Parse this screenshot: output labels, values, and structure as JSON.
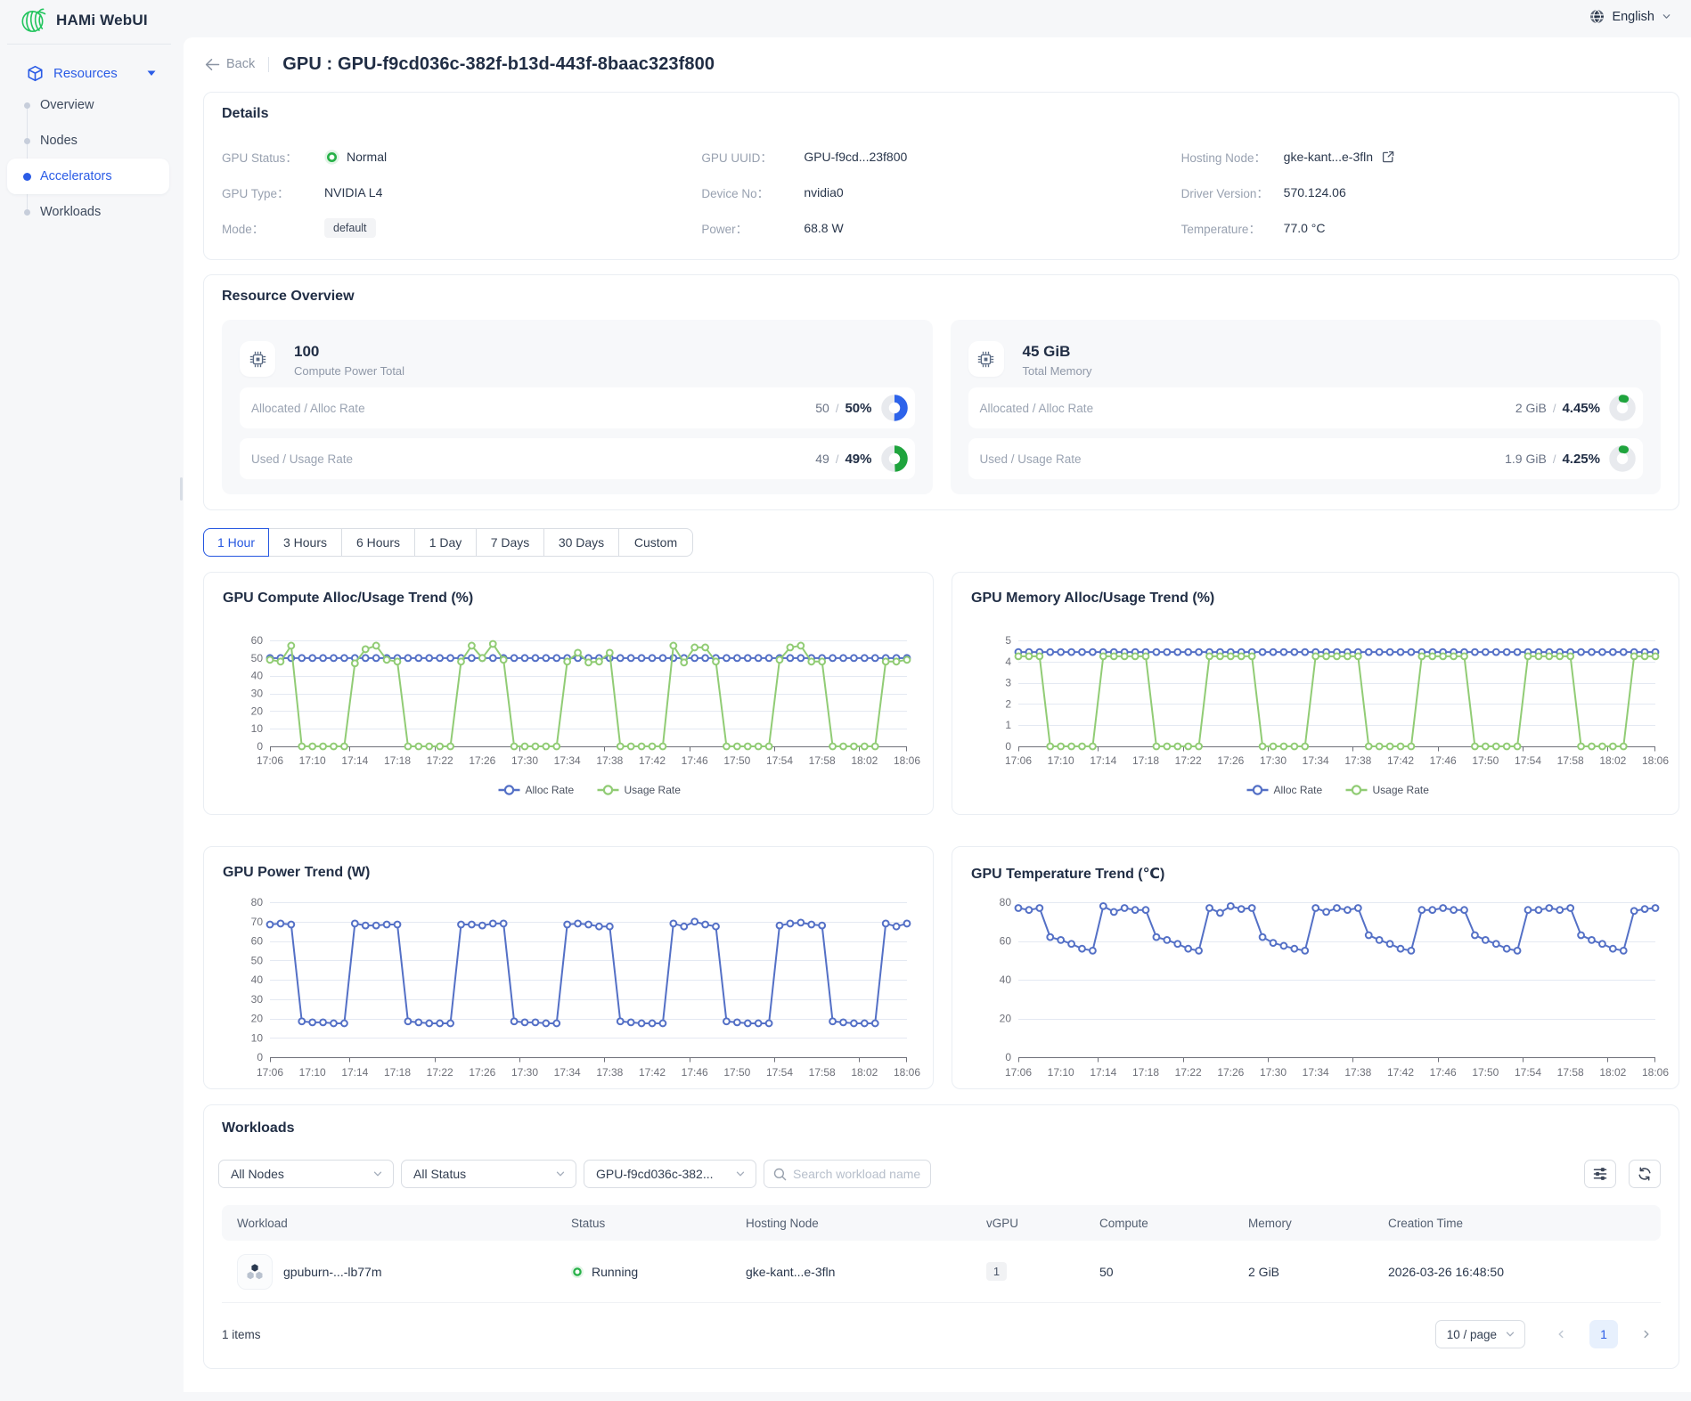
{
  "topbar": {
    "brand": "HAMi WebUI",
    "language": "English"
  },
  "sidebar": {
    "group_label": "Resources",
    "items": [
      {
        "label": "Overview",
        "active": false
      },
      {
        "label": "Nodes",
        "active": false
      },
      {
        "label": "Accelerators",
        "active": true
      },
      {
        "label": "Workloads",
        "active": false
      }
    ]
  },
  "header": {
    "back_label": "Back",
    "title": "GPU : GPU-f9cd036c-382f-b13d-443f-8baac323f800"
  },
  "details": {
    "title": "Details",
    "fields": [
      {
        "label": "GPU Status：",
        "value": "Normal",
        "type": "status"
      },
      {
        "label": "GPU UUID：",
        "value": "GPU-f9cd...23f800",
        "type": "text"
      },
      {
        "label": "Hosting Node：",
        "value": "gke-kant...e-3fln",
        "type": "link"
      },
      {
        "label": "GPU Type：",
        "value": "NVIDIA L4",
        "type": "text"
      },
      {
        "label": "Device No：",
        "value": "nvidia0",
        "type": "text"
      },
      {
        "label": "Driver Version：",
        "value": "570.124.06",
        "type": "text"
      },
      {
        "label": "Mode：",
        "value": "default",
        "type": "tag"
      },
      {
        "label": "Power：",
        "value": "68.8 W",
        "type": "text"
      },
      {
        "label": "Temperature：",
        "value": "77.0 °C",
        "type": "text"
      }
    ]
  },
  "resource_overview": {
    "title": "Resource Overview",
    "cards": [
      {
        "total": "100",
        "total_label": "Compute Power Total",
        "rows": [
          {
            "label": "Allocated / Alloc Rate",
            "value": "50",
            "rate": "50%",
            "percent": 50,
            "color": "#2d63ea"
          },
          {
            "label": "Used / Usage Rate",
            "value": "49",
            "rate": "49%",
            "percent": 49,
            "color": "#1fa43d"
          }
        ]
      },
      {
        "total": "45 GiB",
        "total_label": "Total Memory",
        "rows": [
          {
            "label": "Allocated / Alloc Rate",
            "value": "2 GiB",
            "rate": "4.45%",
            "percent": 4.45,
            "color": "#1fa43d"
          },
          {
            "label": "Used / Usage Rate",
            "value": "1.9 GiB",
            "rate": "4.25%",
            "percent": 4.25,
            "color": "#1fa43d"
          }
        ]
      }
    ]
  },
  "time_range": {
    "options": [
      "1 Hour",
      "3 Hours",
      "6 Hours",
      "1 Day",
      "7 Days",
      "30 Days",
      "Custom"
    ],
    "active": "1 Hour"
  },
  "chart_data": [
    {
      "type": "line",
      "title": "GPU Compute Alloc/Usage Trend (%)",
      "categories": [
        "17:06",
        "17:07",
        "17:08",
        "17:09",
        "17:10",
        "17:11",
        "17:12",
        "17:13",
        "17:14",
        "17:15",
        "17:16",
        "17:17",
        "17:18",
        "17:19",
        "17:20",
        "17:21",
        "17:22",
        "17:23",
        "17:24",
        "17:25",
        "17:26",
        "17:27",
        "17:28",
        "17:29",
        "17:30",
        "17:31",
        "17:32",
        "17:33",
        "17:34",
        "17:35",
        "17:36",
        "17:37",
        "17:38",
        "17:39",
        "17:40",
        "17:41",
        "17:42",
        "17:43",
        "17:44",
        "17:45",
        "17:46",
        "17:47",
        "17:48",
        "17:49",
        "17:50",
        "17:51",
        "17:52",
        "17:53",
        "17:54",
        "17:55",
        "17:56",
        "17:57",
        "17:58",
        "17:59",
        "18:00",
        "18:01",
        "18:02",
        "18:03",
        "18:04",
        "18:05",
        "18:06"
      ],
      "series": [
        {
          "name": "Alloc Rate",
          "color": "#5470c6",
          "values": [
            50,
            50,
            50,
            50,
            50,
            50,
            50,
            50,
            50,
            50,
            50,
            50,
            50,
            50,
            50,
            50,
            50,
            50,
            50,
            50,
            50,
            50,
            50,
            50,
            50,
            50,
            50,
            50,
            50,
            50,
            50,
            50,
            50,
            50,
            50,
            50,
            50,
            50,
            50,
            50,
            50,
            50,
            50,
            50,
            50,
            50,
            50,
            50,
            50,
            50,
            50,
            50,
            50,
            50,
            50,
            50,
            50,
            50,
            50,
            50,
            50
          ]
        },
        {
          "name": "Usage Rate",
          "color": "#91cc75",
          "values": [
            49,
            48,
            57,
            0,
            0,
            0,
            0,
            0,
            47,
            55,
            57,
            49,
            48,
            0,
            0,
            0,
            0,
            0,
            48,
            57,
            50,
            58,
            49,
            0,
            0,
            0,
            0,
            0,
            48,
            53,
            47.5,
            48,
            53,
            0,
            0,
            0,
            0,
            0,
            57,
            47.5,
            56,
            56,
            48,
            0,
            0,
            0,
            0,
            0,
            49,
            56,
            57,
            48,
            48,
            0,
            0,
            0,
            0,
            0,
            48,
            48,
            49
          ]
        }
      ],
      "ylim": [
        0,
        60
      ],
      "ystep": 10,
      "legend": true,
      "grid": true,
      "xlabel": "",
      "ylabel": ""
    },
    {
      "type": "line",
      "title": "GPU Memory Alloc/Usage Trend (%)",
      "categories": [
        "17:06",
        "17:07",
        "17:08",
        "17:09",
        "17:10",
        "17:11",
        "17:12",
        "17:13",
        "17:14",
        "17:15",
        "17:16",
        "17:17",
        "17:18",
        "17:19",
        "17:20",
        "17:21",
        "17:22",
        "17:23",
        "17:24",
        "17:25",
        "17:26",
        "17:27",
        "17:28",
        "17:29",
        "17:30",
        "17:31",
        "17:32",
        "17:33",
        "17:34",
        "17:35",
        "17:36",
        "17:37",
        "17:38",
        "17:39",
        "17:40",
        "17:41",
        "17:42",
        "17:43",
        "17:44",
        "17:45",
        "17:46",
        "17:47",
        "17:48",
        "17:49",
        "17:50",
        "17:51",
        "17:52",
        "17:53",
        "17:54",
        "17:55",
        "17:56",
        "17:57",
        "17:58",
        "17:59",
        "18:00",
        "18:01",
        "18:02",
        "18:03",
        "18:04",
        "18:05",
        "18:06"
      ],
      "series": [
        {
          "name": "Alloc Rate",
          "color": "#5470c6",
          "values": [
            4.45,
            4.45,
            4.45,
            4.45,
            4.45,
            4.45,
            4.45,
            4.45,
            4.45,
            4.45,
            4.45,
            4.45,
            4.45,
            4.45,
            4.45,
            4.45,
            4.45,
            4.45,
            4.45,
            4.45,
            4.45,
            4.45,
            4.45,
            4.45,
            4.45,
            4.45,
            4.45,
            4.45,
            4.45,
            4.45,
            4.45,
            4.45,
            4.45,
            4.45,
            4.45,
            4.45,
            4.45,
            4.45,
            4.45,
            4.45,
            4.45,
            4.45,
            4.45,
            4.45,
            4.45,
            4.45,
            4.45,
            4.45,
            4.45,
            4.45,
            4.45,
            4.45,
            4.45,
            4.45,
            4.45,
            4.45,
            4.45,
            4.45,
            4.45,
            4.45,
            4.45
          ]
        },
        {
          "name": "Usage Rate",
          "color": "#91cc75",
          "values": [
            4.25,
            4.25,
            4.25,
            0,
            0,
            0,
            0,
            0,
            4.25,
            4.25,
            4.25,
            4.25,
            4.25,
            0,
            0,
            0,
            0,
            0,
            4.25,
            4.25,
            4.25,
            4.25,
            4.25,
            0,
            0,
            0,
            0,
            0,
            4.25,
            4.25,
            4.25,
            4.25,
            4.25,
            0,
            0,
            0,
            0,
            0,
            4.25,
            4.25,
            4.25,
            4.25,
            4.25,
            0,
            0,
            0,
            0,
            0,
            4.25,
            4.25,
            4.25,
            4.25,
            4.25,
            0,
            0,
            0,
            0,
            0,
            4.25,
            4.25,
            4.25
          ]
        }
      ],
      "ylim": [
        0,
        5
      ],
      "ystep": 1,
      "legend": true,
      "grid": true,
      "xlabel": "",
      "ylabel": ""
    },
    {
      "type": "line",
      "title": "GPU Power Trend (W)",
      "categories": [
        "17:06",
        "17:07",
        "17:08",
        "17:09",
        "17:10",
        "17:11",
        "17:12",
        "17:13",
        "17:14",
        "17:15",
        "17:16",
        "17:17",
        "17:18",
        "17:19",
        "17:20",
        "17:21",
        "17:22",
        "17:23",
        "17:24",
        "17:25",
        "17:26",
        "17:27",
        "17:28",
        "17:29",
        "17:30",
        "17:31",
        "17:32",
        "17:33",
        "17:34",
        "17:35",
        "17:36",
        "17:37",
        "17:38",
        "17:39",
        "17:40",
        "17:41",
        "17:42",
        "17:43",
        "17:44",
        "17:45",
        "17:46",
        "17:47",
        "17:48",
        "17:49",
        "17:50",
        "17:51",
        "17:52",
        "17:53",
        "17:54",
        "17:55",
        "17:56",
        "17:57",
        "17:58",
        "17:59",
        "18:00",
        "18:01",
        "18:02",
        "18:03",
        "18:04",
        "18:05",
        "18:06"
      ],
      "series": [
        {
          "name": "Power",
          "color": "#5470c6",
          "values": [
            68.5,
            69,
            68.5,
            18.5,
            18,
            18,
            17.5,
            17.5,
            69,
            68,
            68,
            68.5,
            68.5,
            18.5,
            18,
            17.5,
            17.5,
            17.5,
            68.5,
            68.5,
            68,
            69,
            69,
            18.5,
            18,
            18,
            17.5,
            17.5,
            68.5,
            69,
            68.5,
            67.5,
            67.5,
            18.5,
            18,
            17.5,
            17.5,
            17.5,
            69,
            67.5,
            70,
            68.5,
            67.5,
            18.5,
            18,
            17.5,
            17.5,
            17.5,
            68,
            69,
            69.5,
            68.5,
            68,
            18.5,
            18,
            17.5,
            17.5,
            17.5,
            69,
            67.5,
            69
          ]
        }
      ],
      "ylim": [
        0,
        80
      ],
      "ystep": 10,
      "legend": false,
      "grid": true,
      "xlabel": "",
      "ylabel": ""
    },
    {
      "type": "line",
      "title": "GPU Temperature Trend (℃)",
      "categories": [
        "17:06",
        "17:07",
        "17:08",
        "17:09",
        "17:10",
        "17:11",
        "17:12",
        "17:13",
        "17:14",
        "17:15",
        "17:16",
        "17:17",
        "17:18",
        "17:19",
        "17:20",
        "17:21",
        "17:22",
        "17:23",
        "17:24",
        "17:25",
        "17:26",
        "17:27",
        "17:28",
        "17:29",
        "17:30",
        "17:31",
        "17:32",
        "17:33",
        "17:34",
        "17:35",
        "17:36",
        "17:37",
        "17:38",
        "17:39",
        "17:40",
        "17:41",
        "17:42",
        "17:43",
        "17:44",
        "17:45",
        "17:46",
        "17:47",
        "17:48",
        "17:49",
        "17:50",
        "17:51",
        "17:52",
        "17:53",
        "17:54",
        "17:55",
        "17:56",
        "17:57",
        "17:58",
        "17:59",
        "18:00",
        "18:01",
        "18:02",
        "18:03",
        "18:04",
        "18:05",
        "18:06"
      ],
      "series": [
        {
          "name": "Temperature",
          "color": "#5470c6",
          "values": [
            77,
            76,
            77,
            62,
            60.5,
            58.5,
            56,
            55,
            78,
            75,
            77,
            76,
            76,
            62,
            60.5,
            58.5,
            56,
            55,
            77,
            74.5,
            78,
            76.5,
            77,
            62,
            59,
            57.5,
            56,
            55,
            77,
            75,
            77,
            76,
            77,
            63,
            60.5,
            58.5,
            56,
            55,
            76,
            76,
            77,
            76,
            76,
            63,
            60.5,
            58.5,
            56,
            55,
            76,
            76,
            77,
            76,
            77,
            63,
            60.5,
            58.5,
            56,
            55,
            75.5,
            76.5,
            77
          ]
        }
      ],
      "ylim": [
        0,
        80
      ],
      "ystep": 20,
      "legend": false,
      "grid": true,
      "xlabel": "",
      "ylabel": ""
    }
  ],
  "workloads": {
    "title": "Workloads",
    "filters": {
      "node": "All Nodes",
      "status": "All Status",
      "gpu": "GPU-f9cd036c-382...",
      "search_placeholder": "Search workload name"
    },
    "table": {
      "columns": [
        "Workload",
        "Status",
        "Hosting Node",
        "vGPU",
        "Compute",
        "Memory",
        "Creation Time"
      ],
      "rows": [
        {
          "name": "gpuburn-...-lb77m",
          "status": "Running",
          "node": "gke-kant...e-3fln",
          "vgpu": "1",
          "compute": "50",
          "memory": "2 GiB",
          "created": "2026-03-26 16:48:50"
        }
      ]
    },
    "footer": {
      "total": "1 items",
      "page_size": "10 / page",
      "page": "1"
    }
  },
  "colors": {
    "accent_blue": "#2b5ce6",
    "status_green": "#27b148",
    "chart_blue": "#5470c6",
    "chart_green": "#91cc75"
  }
}
